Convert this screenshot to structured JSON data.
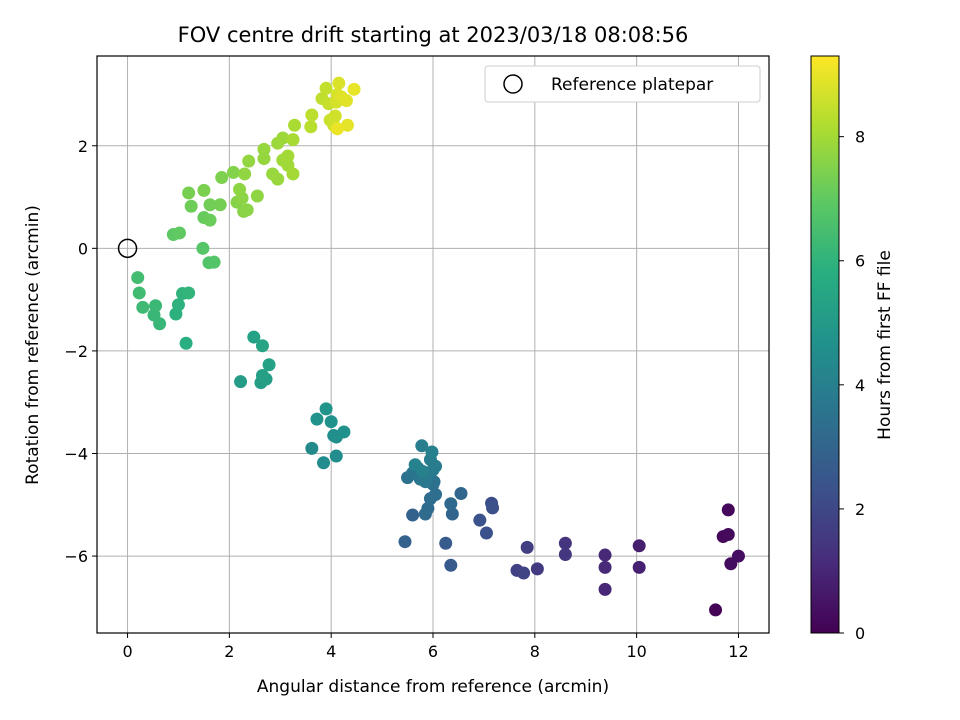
{
  "chart_data": {
    "type": "scatter",
    "title": "FOV centre drift starting at 2023/03/18 08:08:56",
    "xlabel": "Angular distance from reference (arcmin)",
    "ylabel": "Rotation from reference (arcmin)",
    "xlim": [
      -0.6,
      12.6
    ],
    "ylim": [
      -7.5,
      3.75
    ],
    "xticks": [
      0,
      2,
      4,
      6,
      8,
      10,
      12
    ],
    "yticks": [
      -6,
      -4,
      -2,
      0,
      2
    ],
    "grid": true,
    "legend": {
      "placement": "upper-right",
      "entries": [
        "Reference platepar"
      ]
    },
    "reference_point": {
      "x": 0,
      "y": 0
    },
    "colormap": "viridis",
    "colorbar": {
      "label": "Hours from first FF file",
      "range": [
        0,
        9.3
      ],
      "ticks": [
        0,
        2,
        4,
        6,
        8
      ]
    },
    "points": [
      {
        "x": 11.55,
        "y": -7.05,
        "h": 0.1
      },
      {
        "x": 11.8,
        "y": -5.1,
        "h": 0.15
      },
      {
        "x": 11.7,
        "y": -5.62,
        "h": 0.2
      },
      {
        "x": 11.8,
        "y": -5.58,
        "h": 0.25
      },
      {
        "x": 11.85,
        "y": -6.15,
        "h": 0.3
      },
      {
        "x": 12.0,
        "y": -6.0,
        "h": 0.35
      },
      {
        "x": 10.05,
        "y": -5.8,
        "h": 0.8
      },
      {
        "x": 10.05,
        "y": -6.22,
        "h": 0.85
      },
      {
        "x": 9.38,
        "y": -6.65,
        "h": 1.0
      },
      {
        "x": 9.38,
        "y": -5.98,
        "h": 1.05
      },
      {
        "x": 9.38,
        "y": -6.22,
        "h": 1.1
      },
      {
        "x": 8.6,
        "y": -5.75,
        "h": 1.4
      },
      {
        "x": 8.6,
        "y": -5.97,
        "h": 1.45
      },
      {
        "x": 8.05,
        "y": -6.25,
        "h": 1.6
      },
      {
        "x": 7.85,
        "y": -5.83,
        "h": 1.7
      },
      {
        "x": 7.65,
        "y": -6.28,
        "h": 1.8
      },
      {
        "x": 7.78,
        "y": -6.33,
        "h": 1.85
      },
      {
        "x": 7.15,
        "y": -4.97,
        "h": 2.2
      },
      {
        "x": 7.17,
        "y": -5.06,
        "h": 2.25
      },
      {
        "x": 7.05,
        "y": -5.55,
        "h": 2.3
      },
      {
        "x": 6.92,
        "y": -5.3,
        "h": 2.35
      },
      {
        "x": 6.35,
        "y": -6.18,
        "h": 2.6
      },
      {
        "x": 6.25,
        "y": -5.75,
        "h": 2.65
      },
      {
        "x": 5.45,
        "y": -5.72,
        "h": 2.9
      },
      {
        "x": 5.6,
        "y": -5.2,
        "h": 2.95
      },
      {
        "x": 6.38,
        "y": -5.18,
        "h": 3.0
      },
      {
        "x": 6.55,
        "y": -4.78,
        "h": 3.1
      },
      {
        "x": 6.35,
        "y": -4.98,
        "h": 3.15
      },
      {
        "x": 5.85,
        "y": -5.18,
        "h": 3.2
      },
      {
        "x": 5.9,
        "y": -5.07,
        "h": 3.25
      },
      {
        "x": 5.95,
        "y": -4.88,
        "h": 3.3
      },
      {
        "x": 6.05,
        "y": -4.8,
        "h": 3.35
      },
      {
        "x": 6.0,
        "y": -4.6,
        "h": 3.4
      },
      {
        "x": 6.02,
        "y": -4.55,
        "h": 3.45
      },
      {
        "x": 5.5,
        "y": -4.47,
        "h": 3.5
      },
      {
        "x": 5.6,
        "y": -4.38,
        "h": 3.55
      },
      {
        "x": 5.7,
        "y": -4.28,
        "h": 3.6
      },
      {
        "x": 5.75,
        "y": -4.5,
        "h": 3.65
      },
      {
        "x": 5.85,
        "y": -4.55,
        "h": 3.7
      },
      {
        "x": 5.9,
        "y": -4.4,
        "h": 3.75
      },
      {
        "x": 6.0,
        "y": -4.32,
        "h": 3.8
      },
      {
        "x": 6.05,
        "y": -4.25,
        "h": 3.85
      },
      {
        "x": 5.95,
        "y": -4.12,
        "h": 3.9
      },
      {
        "x": 5.78,
        "y": -3.85,
        "h": 3.95
      },
      {
        "x": 5.98,
        "y": -3.97,
        "h": 4.0
      },
      {
        "x": 5.8,
        "y": -4.35,
        "h": 4.05
      },
      {
        "x": 5.65,
        "y": -4.22,
        "h": 4.1
      },
      {
        "x": 3.62,
        "y": -3.9,
        "h": 4.4
      },
      {
        "x": 3.85,
        "y": -4.18,
        "h": 4.45
      },
      {
        "x": 4.1,
        "y": -4.05,
        "h": 4.5
      },
      {
        "x": 4.1,
        "y": -3.68,
        "h": 4.55
      },
      {
        "x": 4.05,
        "y": -3.65,
        "h": 4.6
      },
      {
        "x": 4.25,
        "y": -3.58,
        "h": 4.65
      },
      {
        "x": 4.0,
        "y": -3.38,
        "h": 4.7
      },
      {
        "x": 3.72,
        "y": -3.33,
        "h": 4.75
      },
      {
        "x": 3.9,
        "y": -3.13,
        "h": 4.8
      },
      {
        "x": 2.22,
        "y": -2.6,
        "h": 5.1
      },
      {
        "x": 2.62,
        "y": -2.62,
        "h": 5.15
      },
      {
        "x": 2.72,
        "y": -2.55,
        "h": 5.2
      },
      {
        "x": 2.65,
        "y": -2.48,
        "h": 5.25
      },
      {
        "x": 2.78,
        "y": -2.27,
        "h": 5.3
      },
      {
        "x": 2.48,
        "y": -1.73,
        "h": 5.35
      },
      {
        "x": 2.65,
        "y": -1.9,
        "h": 5.4
      },
      {
        "x": 1.15,
        "y": -1.85,
        "h": 5.8
      },
      {
        "x": 0.95,
        "y": -1.28,
        "h": 5.9
      },
      {
        "x": 1.0,
        "y": -1.1,
        "h": 5.95
      },
      {
        "x": 1.08,
        "y": -0.88,
        "h": 6.0
      },
      {
        "x": 1.2,
        "y": -0.87,
        "h": 6.05
      },
      {
        "x": 0.63,
        "y": -1.47,
        "h": 6.15
      },
      {
        "x": 0.52,
        "y": -1.3,
        "h": 6.2
      },
      {
        "x": 0.55,
        "y": -1.12,
        "h": 6.25
      },
      {
        "x": 0.3,
        "y": -1.15,
        "h": 6.3
      },
      {
        "x": 0.23,
        "y": -0.87,
        "h": 6.35
      },
      {
        "x": 0.2,
        "y": -0.57,
        "h": 6.4
      },
      {
        "x": 1.6,
        "y": -0.28,
        "h": 6.7
      },
      {
        "x": 1.7,
        "y": -0.27,
        "h": 6.75
      },
      {
        "x": 1.48,
        "y": 0.0,
        "h": 6.8
      },
      {
        "x": 0.9,
        "y": 0.27,
        "h": 6.95
      },
      {
        "x": 1.02,
        "y": 0.3,
        "h": 7.0
      },
      {
        "x": 1.5,
        "y": 0.6,
        "h": 7.1
      },
      {
        "x": 1.62,
        "y": 0.55,
        "h": 7.15
      },
      {
        "x": 1.25,
        "y": 0.82,
        "h": 7.2
      },
      {
        "x": 1.62,
        "y": 0.85,
        "h": 7.25
      },
      {
        "x": 1.82,
        "y": 0.85,
        "h": 7.3
      },
      {
        "x": 1.2,
        "y": 1.08,
        "h": 7.35
      },
      {
        "x": 1.5,
        "y": 1.13,
        "h": 7.4
      },
      {
        "x": 1.85,
        "y": 1.38,
        "h": 7.45
      },
      {
        "x": 2.08,
        "y": 1.48,
        "h": 7.5
      },
      {
        "x": 2.15,
        "y": 0.9,
        "h": 7.55
      },
      {
        "x": 2.28,
        "y": 0.72,
        "h": 7.6
      },
      {
        "x": 2.35,
        "y": 0.75,
        "h": 7.62
      },
      {
        "x": 2.25,
        "y": 0.98,
        "h": 7.65
      },
      {
        "x": 2.2,
        "y": 1.15,
        "h": 7.68
      },
      {
        "x": 2.55,
        "y": 1.02,
        "h": 7.7
      },
      {
        "x": 2.3,
        "y": 1.45,
        "h": 7.72
      },
      {
        "x": 2.38,
        "y": 1.7,
        "h": 7.75
      },
      {
        "x": 2.68,
        "y": 1.75,
        "h": 7.78
      },
      {
        "x": 2.68,
        "y": 1.93,
        "h": 7.8
      },
      {
        "x": 2.85,
        "y": 1.45,
        "h": 7.83
      },
      {
        "x": 2.95,
        "y": 1.35,
        "h": 7.85
      },
      {
        "x": 2.95,
        "y": 2.05,
        "h": 7.88
      },
      {
        "x": 3.05,
        "y": 2.15,
        "h": 7.9
      },
      {
        "x": 3.05,
        "y": 1.72,
        "h": 7.93
      },
      {
        "x": 3.15,
        "y": 1.62,
        "h": 7.95
      },
      {
        "x": 3.15,
        "y": 1.8,
        "h": 7.98
      },
      {
        "x": 3.25,
        "y": 1.45,
        "h": 8.0
      },
      {
        "x": 3.25,
        "y": 2.12,
        "h": 8.05
      },
      {
        "x": 3.28,
        "y": 2.4,
        "h": 8.1
      },
      {
        "x": 3.6,
        "y": 2.37,
        "h": 8.3
      },
      {
        "x": 3.62,
        "y": 2.6,
        "h": 8.35
      },
      {
        "x": 3.82,
        "y": 2.92,
        "h": 8.4
      },
      {
        "x": 3.9,
        "y": 3.12,
        "h": 8.45
      },
      {
        "x": 3.95,
        "y": 2.82,
        "h": 8.5
      },
      {
        "x": 3.98,
        "y": 2.5,
        "h": 8.55
      },
      {
        "x": 4.05,
        "y": 2.4,
        "h": 8.6
      },
      {
        "x": 4.08,
        "y": 2.58,
        "h": 8.65
      },
      {
        "x": 4.1,
        "y": 2.85,
        "h": 8.7
      },
      {
        "x": 4.12,
        "y": 3.0,
        "h": 8.75
      },
      {
        "x": 4.15,
        "y": 3.22,
        "h": 8.8
      },
      {
        "x": 4.2,
        "y": 2.95,
        "h": 8.85
      },
      {
        "x": 4.3,
        "y": 2.88,
        "h": 8.9
      },
      {
        "x": 4.32,
        "y": 2.4,
        "h": 8.95
      },
      {
        "x": 4.45,
        "y": 3.1,
        "h": 9.0
      },
      {
        "x": 4.12,
        "y": 2.33,
        "h": 9.05
      }
    ]
  }
}
